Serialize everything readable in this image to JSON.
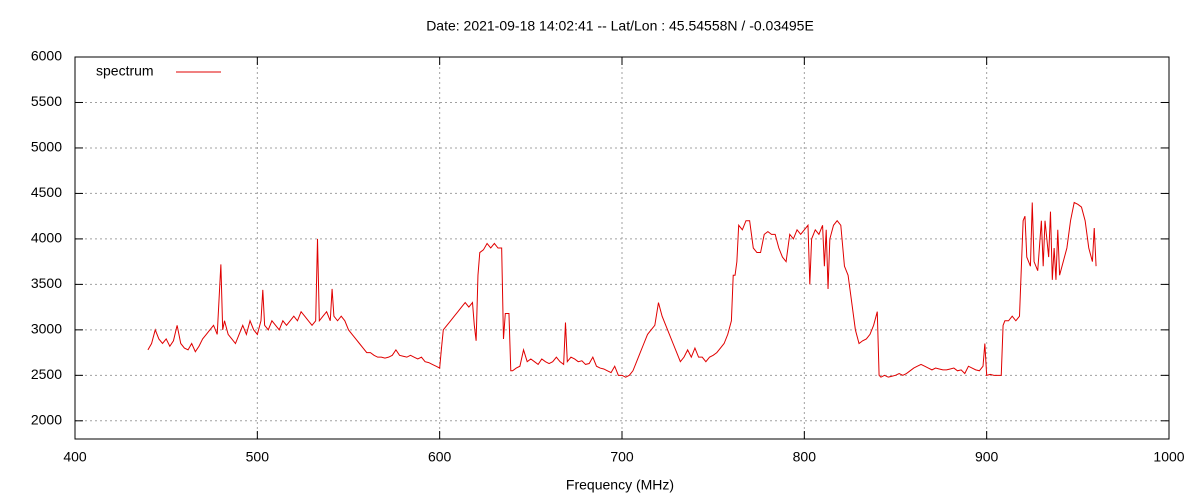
{
  "chart_data": {
    "type": "line",
    "title": "Date: 2021-09-18 14:02:41  --  Lat/Lon : 45.54558N / -0.03495E",
    "x_label": "Frequency (MHz)",
    "xlim": [
      400,
      1000
    ],
    "xticks": [
      400,
      500,
      600,
      700,
      800,
      900,
      1000
    ],
    "ylim": [
      1800,
      6000
    ],
    "yticks": [
      2000,
      2500,
      3000,
      3500,
      4000,
      4500,
      5000,
      5500,
      6000
    ],
    "grid": true,
    "legend": "top-left",
    "x": [
      440,
      442,
      444,
      446,
      448,
      450,
      452,
      454,
      456,
      458,
      460,
      462,
      464,
      466,
      468,
      470,
      472,
      474,
      476,
      478,
      480,
      481,
      482,
      484,
      486,
      488,
      490,
      492,
      494,
      496,
      498,
      500,
      502,
      503,
      504,
      506,
      508,
      510,
      512,
      514,
      516,
      518,
      520,
      522,
      524,
      526,
      528,
      530,
      532,
      533,
      534,
      536,
      538,
      540,
      541,
      542,
      544,
      546,
      548,
      550,
      552,
      554,
      556,
      558,
      560,
      562,
      564,
      566,
      568,
      570,
      572,
      574,
      576,
      578,
      580,
      582,
      584,
      586,
      588,
      590,
      592,
      594,
      596,
      598,
      600,
      601,
      602,
      604,
      606,
      608,
      610,
      612,
      614,
      616,
      618,
      619,
      620,
      621,
      622,
      624,
      626,
      628,
      630,
      632,
      634,
      635,
      636,
      638,
      639,
      640,
      642,
      644,
      646,
      648,
      650,
      652,
      654,
      656,
      658,
      660,
      662,
      664,
      666,
      668,
      669,
      670,
      672,
      674,
      676,
      678,
      680,
      682,
      684,
      686,
      688,
      690,
      692,
      694,
      696,
      698,
      700,
      702,
      704,
      706,
      708,
      710,
      712,
      714,
      716,
      718,
      720,
      722,
      724,
      726,
      728,
      730,
      732,
      734,
      736,
      738,
      740,
      742,
      744,
      746,
      748,
      750,
      752,
      754,
      756,
      758,
      760,
      761,
      762,
      763,
      764,
      766,
      768,
      770,
      772,
      774,
      776,
      778,
      780,
      782,
      784,
      786,
      788,
      790,
      792,
      794,
      796,
      798,
      800,
      802,
      803,
      804,
      806,
      808,
      810,
      811,
      812,
      813,
      814,
      816,
      818,
      820,
      822,
      824,
      826,
      828,
      830,
      832,
      834,
      836,
      838,
      840,
      841,
      842,
      844,
      846,
      848,
      850,
      852,
      854,
      856,
      858,
      860,
      862,
      864,
      866,
      868,
      870,
      872,
      874,
      876,
      878,
      880,
      882,
      884,
      886,
      888,
      890,
      892,
      894,
      896,
      898,
      899,
      900,
      902,
      904,
      906,
      908,
      909,
      910,
      912,
      914,
      916,
      918,
      920,
      921,
      922,
      924,
      925,
      926,
      928,
      930,
      931,
      932,
      934,
      935,
      936,
      937,
      938,
      939,
      940,
      942,
      944,
      946,
      948,
      950,
      952,
      954,
      956,
      958,
      959,
      960
    ],
    "series": [
      {
        "name": "spectrum",
        "color": "#e00000",
        "values": [
          2780,
          2850,
          3000,
          2900,
          2850,
          2900,
          2820,
          2880,
          3050,
          2850,
          2800,
          2780,
          2850,
          2760,
          2820,
          2900,
          2950,
          3000,
          3050,
          2950,
          3720,
          3000,
          3100,
          2950,
          2900,
          2850,
          2950,
          3050,
          2950,
          3100,
          3000,
          2950,
          3100,
          3440,
          3050,
          3000,
          3100,
          3050,
          3000,
          3100,
          3050,
          3100,
          3150,
          3100,
          3200,
          3150,
          3100,
          3050,
          3100,
          4000,
          3100,
          3150,
          3200,
          3100,
          3450,
          3150,
          3100,
          3150,
          3100,
          3000,
          2950,
          2900,
          2850,
          2800,
          2750,
          2750,
          2720,
          2700,
          2700,
          2690,
          2700,
          2720,
          2780,
          2720,
          2710,
          2700,
          2720,
          2700,
          2680,
          2700,
          2650,
          2640,
          2620,
          2600,
          2580,
          2800,
          3000,
          3050,
          3100,
          3150,
          3200,
          3250,
          3300,
          3250,
          3300,
          3050,
          2880,
          3600,
          3850,
          3880,
          3950,
          3900,
          3950,
          3900,
          3900,
          2900,
          3180,
          3180,
          2550,
          2550,
          2580,
          2600,
          2780,
          2650,
          2680,
          2650,
          2620,
          2680,
          2650,
          2630,
          2650,
          2700,
          2650,
          2620,
          3080,
          2650,
          2700,
          2680,
          2650,
          2660,
          2620,
          2630,
          2700,
          2600,
          2580,
          2570,
          2550,
          2530,
          2600,
          2500,
          2500,
          2480,
          2500,
          2550,
          2650,
          2750,
          2850,
          2950,
          3000,
          3050,
          3300,
          3150,
          3050,
          2950,
          2850,
          2750,
          2650,
          2700,
          2780,
          2700,
          2800,
          2700,
          2700,
          2650,
          2700,
          2720,
          2750,
          2800,
          2850,
          2950,
          3100,
          3600,
          3600,
          3750,
          4150,
          4100,
          4200,
          4200,
          3900,
          3850,
          3850,
          4050,
          4080,
          4050,
          4050,
          3900,
          3800,
          3750,
          4050,
          4000,
          4100,
          4050,
          4100,
          4150,
          3500,
          4000,
          4100,
          4050,
          4150,
          3700,
          4100,
          3450,
          4000,
          4150,
          4200,
          4150,
          3700,
          3600,
          3300,
          3000,
          2850,
          2880,
          2900,
          2950,
          3050,
          3200,
          2500,
          2480,
          2500,
          2480,
          2490,
          2500,
          2520,
          2500,
          2520,
          2550,
          2580,
          2600,
          2620,
          2600,
          2580,
          2560,
          2580,
          2570,
          2560,
          2560,
          2570,
          2580,
          2550,
          2560,
          2520,
          2600,
          2580,
          2560,
          2550,
          2600,
          2850,
          2500,
          2510,
          2500,
          2500,
          2500,
          3050,
          3100,
          3100,
          3150,
          3100,
          3150,
          4200,
          4250,
          3800,
          3700,
          4400,
          3750,
          3650,
          4200,
          3700,
          4200,
          3800,
          4300,
          3550,
          3900,
          3550,
          4100,
          3600,
          3750,
          3900,
          4200,
          4400,
          4380,
          4350,
          4200,
          3900,
          3750,
          4120,
          3700
        ]
      }
    ]
  }
}
